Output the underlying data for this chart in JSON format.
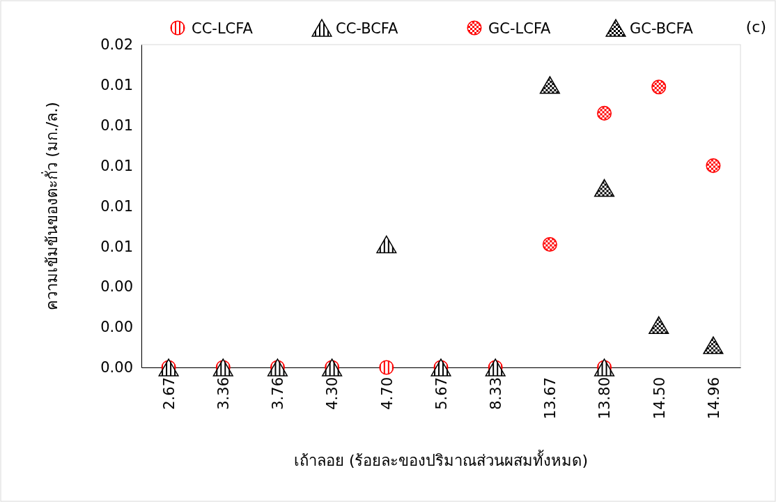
{
  "chart_data": {
    "type": "scatter",
    "xlabel": "เถ้าลอย (ร้อยละของปริมาณส่วนผสมทั้งหมด)",
    "ylabel": "ความเข้มข้นของตะกั่ว (มก./ล.)",
    "categories": [
      "2.67",
      "3.36",
      "3.76",
      "4.30",
      "4.70",
      "5.67",
      "8.33",
      "13.67",
      "13.80",
      "14.50",
      "14.96"
    ],
    "ylim": [
      0,
      0.016
    ],
    "yticks": [
      {
        "value": 0,
        "label": "0.00"
      },
      {
        "value": 0.002,
        "label": "0.00"
      },
      {
        "value": 0.004,
        "label": "0.00"
      },
      {
        "value": 0.006,
        "label": "0.01"
      },
      {
        "value": 0.008,
        "label": "0.01"
      },
      {
        "value": 0.01,
        "label": "0.01"
      },
      {
        "value": 0.012,
        "label": "0.01"
      },
      {
        "value": 0.014,
        "label": "0.01"
      },
      {
        "value": 0.016,
        "label": "0.02"
      }
    ],
    "legend": "top",
    "grid": false,
    "annotations": [
      "(c)"
    ],
    "series": [
      {
        "name": "CC-LCFA",
        "color": "#ff0000",
        "marker": "circle",
        "values": [
          0,
          0,
          0,
          0,
          0,
          0,
          0,
          null,
          0,
          null,
          null
        ]
      },
      {
        "name": "CC-BCFA",
        "color": "#000000",
        "marker": "triangle",
        "values": [
          0,
          0,
          0,
          0,
          0.0061,
          0,
          0,
          null,
          0,
          null,
          null
        ]
      },
      {
        "name": "GC-LCFA",
        "color": "#ff0000",
        "marker": "circle",
        "values": [
          null,
          null,
          null,
          null,
          null,
          null,
          null,
          0.0061,
          0.0126,
          0.0139,
          0.01
        ]
      },
      {
        "name": "GC-BCFA",
        "color": "#000000",
        "marker": "triangle",
        "values": [
          null,
          null,
          null,
          null,
          null,
          null,
          null,
          0.014,
          0.0089,
          0.0021,
          0.0011
        ]
      }
    ]
  }
}
